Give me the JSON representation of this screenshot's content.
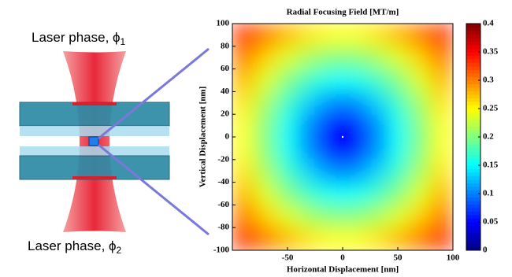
{
  "diagram": {
    "top_label": "Laser phase, ϕ",
    "top_subscript": "1",
    "bottom_label": "Laser phase, ϕ",
    "bottom_subscript": "2"
  },
  "chart_data": {
    "type": "heatmap",
    "title": "Radial Focusing Field [MT/m]",
    "x_label": "Horizontal Displacement [nm]",
    "y_label": "Vertical Displacement [nm]",
    "x": [
      -90,
      -70,
      -50,
      -30,
      -10,
      10,
      30,
      50,
      70,
      90
    ],
    "y": [
      90,
      70,
      50,
      30,
      10,
      -10,
      -30,
      -50,
      -70,
      -90
    ],
    "z": [
      [
        0.332,
        0.302,
        0.277,
        0.259,
        0.249,
        0.249,
        0.259,
        0.277,
        0.302,
        0.332
      ],
      [
        0.302,
        0.268,
        0.238,
        0.215,
        0.201,
        0.201,
        0.215,
        0.238,
        0.268,
        0.302
      ],
      [
        0.277,
        0.238,
        0.201,
        0.171,
        0.153,
        0.153,
        0.171,
        0.201,
        0.238,
        0.277
      ],
      [
        0.259,
        0.215,
        0.171,
        0.131,
        0.102,
        0.102,
        0.131,
        0.171,
        0.215,
        0.259
      ],
      [
        0.249,
        0.201,
        0.153,
        0.102,
        0.051,
        0.051,
        0.102,
        0.153,
        0.201,
        0.249
      ],
      [
        0.249,
        0.201,
        0.153,
        0.102,
        0.051,
        0.051,
        0.102,
        0.153,
        0.201,
        0.249
      ],
      [
        0.259,
        0.215,
        0.171,
        0.131,
        0.102,
        0.102,
        0.131,
        0.171,
        0.215,
        0.259
      ],
      [
        0.277,
        0.238,
        0.201,
        0.171,
        0.153,
        0.153,
        0.171,
        0.201,
        0.238,
        0.277
      ],
      [
        0.302,
        0.268,
        0.238,
        0.215,
        0.201,
        0.201,
        0.215,
        0.238,
        0.268,
        0.302
      ],
      [
        0.332,
        0.302,
        0.277,
        0.259,
        0.249,
        0.249,
        0.259,
        0.277,
        0.302,
        0.332
      ]
    ],
    "xlim": [
      -100,
      100
    ],
    "ylim": [
      -100,
      100
    ],
    "xticks": [
      -50,
      0,
      50,
      100
    ],
    "yticks": [
      -100,
      -80,
      -60,
      -40,
      -20,
      0,
      20,
      40,
      60,
      80,
      100
    ],
    "colormap": "jet",
    "clim": [
      0,
      0.4
    ],
    "cticks": [
      0,
      0.05,
      0.1,
      0.15,
      0.2,
      0.25,
      0.3,
      0.35,
      0.4
    ]
  }
}
